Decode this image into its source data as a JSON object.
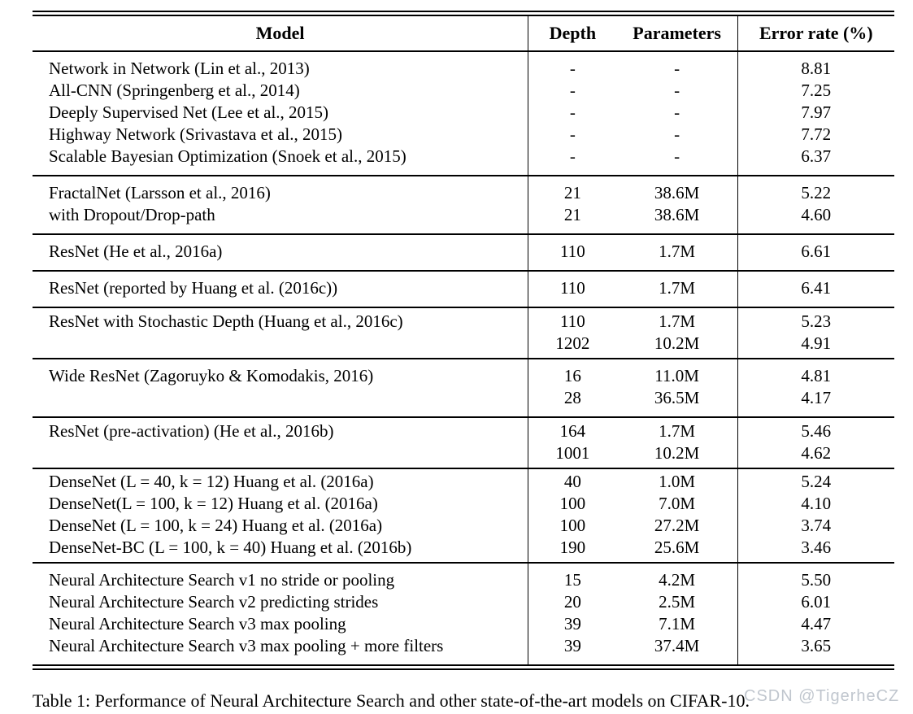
{
  "table": {
    "columns": [
      "Model",
      "Depth",
      "Parameters",
      "Error rate (%)"
    ],
    "sections": [
      {
        "rows": [
          [
            "Network in Network (Lin et al., 2013)",
            "-",
            "-",
            "8.81"
          ],
          [
            "All-CNN (Springenberg et al., 2014)",
            "-",
            "-",
            "7.25"
          ],
          [
            "Deeply Supervised Net (Lee et al., 2015)",
            "-",
            "-",
            "7.97"
          ],
          [
            "Highway Network (Srivastava et al., 2015)",
            "-",
            "-",
            "7.72"
          ],
          [
            "Scalable Bayesian Optimization (Snoek et al., 2015)",
            "-",
            "-",
            "6.37"
          ]
        ]
      },
      {
        "rows": [
          [
            "FractalNet (Larsson et al., 2016)",
            "21",
            "38.6M",
            "5.22"
          ],
          [
            "with Dropout/Drop-path",
            "21",
            "38.6M",
            "4.60"
          ]
        ]
      },
      {
        "rows": [
          [
            "ResNet (He et al., 2016a)",
            "110",
            "1.7M",
            "6.61"
          ]
        ]
      },
      {
        "rows": [
          [
            "ResNet (reported by Huang et al. (2016c))",
            "110",
            "1.7M",
            "6.41"
          ]
        ]
      },
      {
        "rows": [
          [
            "ResNet with Stochastic Depth (Huang et al., 2016c)",
            "110",
            "1.7M",
            "5.23"
          ],
          [
            "",
            "1202",
            "10.2M",
            "4.91"
          ]
        ]
      },
      {
        "rows": [
          [
            "Wide ResNet (Zagoruyko & Komodakis, 2016)",
            "16",
            "11.0M",
            "4.81"
          ],
          [
            "",
            "28",
            "36.5M",
            "4.17"
          ]
        ]
      },
      {
        "rows": [
          [
            "ResNet (pre-activation) (He et al., 2016b)",
            "164",
            "1.7M",
            "5.46"
          ],
          [
            "",
            "1001",
            "10.2M",
            "4.62"
          ]
        ]
      },
      {
        "rows": [
          [
            "DenseNet (L = 40, k = 12) Huang et al. (2016a)",
            "40",
            "1.0M",
            "5.24"
          ],
          [
            "DenseNet(L = 100, k = 12) Huang et al. (2016a)",
            "100",
            "7.0M",
            "4.10"
          ],
          [
            "DenseNet (L = 100, k = 24) Huang et al. (2016a)",
            "100",
            "27.2M",
            "3.74"
          ],
          [
            "DenseNet-BC (L = 100, k = 40) Huang et al. (2016b)",
            "190",
            "25.6M",
            "3.46"
          ]
        ]
      },
      {
        "rows": [
          [
            "Neural Architecture Search v1 no stride or pooling",
            "15",
            "4.2M",
            "5.50"
          ],
          [
            "Neural Architecture Search v2 predicting strides",
            "20",
            "2.5M",
            "6.01"
          ],
          [
            "Neural Architecture Search v3 max pooling",
            "39",
            "7.1M",
            "4.47"
          ],
          [
            "Neural Architecture Search v3 max pooling + more filters",
            "39",
            "37.4M",
            "3.65"
          ]
        ]
      }
    ],
    "caption": "Table 1: Performance of Neural Architecture Search and other state-of-the-art models on CIFAR-10."
  },
  "watermark": {
    "text": "CSDN @TigerheCZ",
    "color": "#b6bdc6"
  }
}
